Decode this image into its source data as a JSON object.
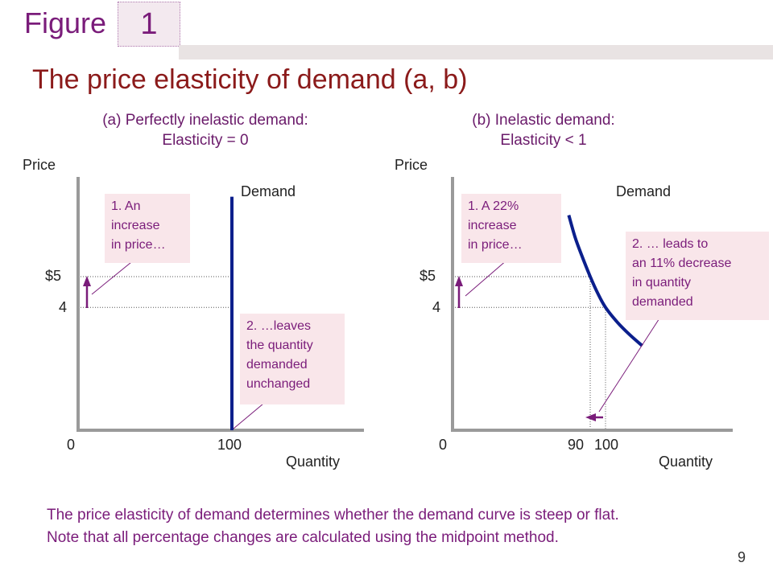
{
  "header": {
    "figure_word": "Figure",
    "figure_number": "1",
    "title": "The price elasticity of demand (a, b)"
  },
  "colors": {
    "curve": "#0b1f8c",
    "accent": "#7a1c7a",
    "title": "#8b1a1a",
    "callout_bg": "#f9e6ea"
  },
  "chart_data": [
    {
      "type": "line",
      "title_line1": "(a) Perfectly inelastic demand:",
      "title_line2": "Elasticity = 0",
      "ylabel": "Price",
      "xlabel": "Quantity",
      "series_label": "Demand",
      "origin_label": "0",
      "y_ticks": [
        {
          "value": 5,
          "label": "$5"
        },
        {
          "value": 4,
          "label": "4"
        }
      ],
      "x_ticks": [
        {
          "value": 100,
          "label": "100"
        }
      ],
      "xlim": [
        0,
        150
      ],
      "ylim": [
        0,
        8.1
      ],
      "demand_curve": [
        {
          "x": 100,
          "y": 0
        },
        {
          "x": 100,
          "y": 7.6
        }
      ],
      "annotations": [
        "1.  An increase in price…",
        "2. …leaves the quantity demanded unchanged"
      ]
    },
    {
      "type": "line",
      "title_line1": "(b) Inelastic demand:",
      "title_line2": "Elasticity < 1",
      "ylabel": "Price",
      "xlabel": "Quantity",
      "series_label": "Demand",
      "origin_label": "0",
      "y_ticks": [
        {
          "value": 5,
          "label": "$5"
        },
        {
          "value": 4,
          "label": "4"
        }
      ],
      "x_ticks": [
        {
          "value": 90,
          "label": "90"
        },
        {
          "value": 100,
          "label": "100"
        }
      ],
      "xlim": [
        0,
        136
      ],
      "ylim": [
        0,
        8.1
      ],
      "demand_curve": [
        {
          "x": 76,
          "y": 7.0
        },
        {
          "x": 80,
          "y": 6.3
        },
        {
          "x": 84,
          "y": 5.75
        },
        {
          "x": 90,
          "y": 5.0
        },
        {
          "x": 95,
          "y": 4.45
        },
        {
          "x": 100,
          "y": 4.0
        },
        {
          "x": 108,
          "y": 3.5
        },
        {
          "x": 116,
          "y": 3.1
        },
        {
          "x": 124,
          "y": 2.75
        }
      ],
      "annotations": [
        "1.  A 22% increase in price…",
        "2. … leads to an 11% decrease in quantity demanded"
      ]
    }
  ],
  "callouts": {
    "a1_line1": "1.   An",
    "a1_line2": "increase",
    "a1_line3": "in price…",
    "a2_line1": "2. …leaves",
    "a2_line2": "the quantity",
    "a2_line3": "demanded",
    "a2_line4": "unchanged",
    "b1_line1": "1.   A  22%",
    "b1_line2": "increase",
    "b1_line3": "in price…",
    "b2_line1": "2.  … leads to",
    "b2_line2": "an 11% decrease",
    "b2_line3": "in quantity",
    "b2_line4": "demanded"
  },
  "caption": {
    "line1": "The price elasticity of demand determines whether the demand curve is steep or flat.",
    "line2": "Note that all percentage changes are calculated using the midpoint method."
  },
  "page_number": "9"
}
